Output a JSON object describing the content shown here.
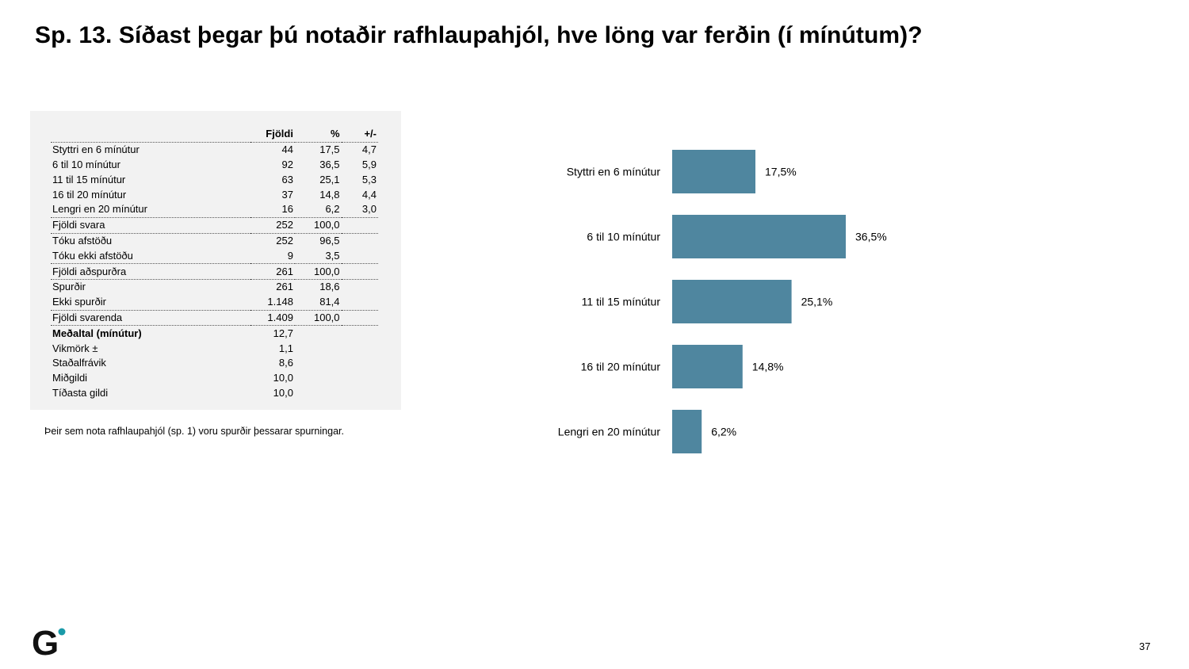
{
  "title": "Sp. 13. Síðast þegar þú notaðir rafhlaupahjól, hve löng var ferðin (í mínútum)?",
  "table": {
    "headers": [
      "",
      "Fjöldi",
      "%",
      "+/-"
    ],
    "rows": [
      {
        "label": "Styttri en 6 mínútur",
        "n": "44",
        "pct": "17,5",
        "moe": "4,7",
        "sep": false,
        "bold": false
      },
      {
        "label": "6 til 10 mínútur",
        "n": "92",
        "pct": "36,5",
        "moe": "5,9",
        "sep": false,
        "bold": false
      },
      {
        "label": "11 til 15 mínútur",
        "n": "63",
        "pct": "25,1",
        "moe": "5,3",
        "sep": false,
        "bold": false
      },
      {
        "label": "16 til 20 mínútur",
        "n": "37",
        "pct": "14,8",
        "moe": "4,4",
        "sep": false,
        "bold": false
      },
      {
        "label": "Lengri en 20 mínútur",
        "n": "16",
        "pct": "6,2",
        "moe": "3,0",
        "sep": true,
        "bold": false
      },
      {
        "label": "Fjöldi svara",
        "n": "252",
        "pct": "100,0",
        "moe": "",
        "sep": true,
        "bold": false
      },
      {
        "label": "Tóku afstöðu",
        "n": "252",
        "pct": "96,5",
        "moe": "",
        "sep": false,
        "bold": false
      },
      {
        "label": "Tóku ekki afstöðu",
        "n": "9",
        "pct": "3,5",
        "moe": "",
        "sep": true,
        "bold": false
      },
      {
        "label": "Fjöldi aðspurðra",
        "n": "261",
        "pct": "100,0",
        "moe": "",
        "sep": true,
        "bold": false
      },
      {
        "label": "Spurðir",
        "n": "261",
        "pct": "18,6",
        "moe": "",
        "sep": false,
        "bold": false
      },
      {
        "label": "Ekki spurðir",
        "n": "1.148",
        "pct": "81,4",
        "moe": "",
        "sep": true,
        "bold": false
      },
      {
        "label": "Fjöldi svarenda",
        "n": "1.409",
        "pct": "100,0",
        "moe": "",
        "sep": true,
        "bold": false
      },
      {
        "label": "Meðaltal (mínútur)",
        "n": "12,7",
        "pct": "",
        "moe": "",
        "sep": false,
        "bold": true
      },
      {
        "label": "Vikmörk ±",
        "n": "1,1",
        "pct": "",
        "moe": "",
        "sep": false,
        "bold": false
      },
      {
        "label": "Staðalfrávik",
        "n": "8,6",
        "pct": "",
        "moe": "",
        "sep": false,
        "bold": false
      },
      {
        "label": "Miðgildi",
        "n": "10,0",
        "pct": "",
        "moe": "",
        "sep": false,
        "bold": false
      },
      {
        "label": "Tíðasta gildi",
        "n": "10,0",
        "pct": "",
        "moe": "",
        "sep": false,
        "bold": false
      }
    ]
  },
  "note": "Þeir sem nota rafhlaupahjól (sp. 1) voru spurðir þessarar spurningar.",
  "chart_data": {
    "type": "bar",
    "orientation": "horizontal",
    "categories": [
      "Styttri en 6 mínútur",
      "6 til 10 mínútur",
      "11 til 15 mínútur",
      "16 til 20 mínútur",
      "Lengri en 20 mínútur"
    ],
    "values": [
      17.5,
      36.5,
      25.1,
      14.8,
      6.2
    ],
    "data_labels": [
      "17,5%",
      "36,5%",
      "25,1%",
      "14,8%",
      "6,2%"
    ],
    "xlim": [
      0,
      100
    ],
    "grid": false,
    "bar_color": "#4f869f"
  },
  "page_number": "37",
  "logo": {
    "name": "gallup-logo",
    "letter": "G",
    "dot_color": "#1a9aa8"
  }
}
